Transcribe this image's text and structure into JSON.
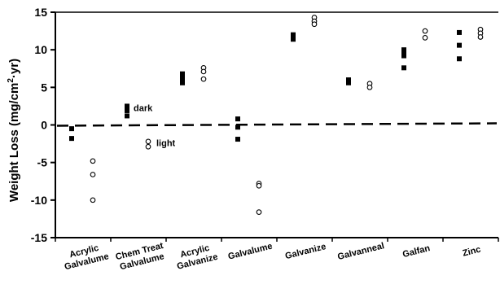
{
  "chart_data": {
    "type": "scatter",
    "title": "",
    "xlabel": "",
    "ylabel": "Weight Loss (mg/cm²·yr)",
    "ylabel_main": "Weight Loss (mg/cm",
    "ylabel_sup": "2",
    "ylabel_tail": "·yr)",
    "ylim": [
      -15,
      15
    ],
    "yticks": [
      15,
      10,
      5,
      0,
      -5,
      -10,
      -15
    ],
    "grid": false,
    "legend": "none",
    "reference_line": {
      "y": 0,
      "style": "dashed"
    },
    "categories": [
      {
        "line1": "Acrylic",
        "line2": "Galvalume"
      },
      {
        "line1": "Chem Treat",
        "line2": "Galvalume"
      },
      {
        "line1": "Acrylic",
        "line2": "Galvanize"
      },
      {
        "line1": "Galvalume",
        "line2": ""
      },
      {
        "line1": "Galvanize",
        "line2": ""
      },
      {
        "line1": "Galvanneal",
        "line2": ""
      },
      {
        "line1": "Galfan",
        "line2": ""
      },
      {
        "line1": "Zinc",
        "line2": ""
      }
    ],
    "series": [
      {
        "name": "dark",
        "marker": "filled-square",
        "points": [
          [
            0,
            -0.5
          ],
          [
            0,
            -1.8
          ],
          [
            1,
            2.5
          ],
          [
            1,
            1.9
          ],
          [
            1,
            1.2
          ],
          [
            2,
            6.8
          ],
          [
            2,
            6.4
          ],
          [
            2,
            6.0
          ],
          [
            2,
            5.6
          ],
          [
            3,
            0.8
          ],
          [
            3,
            -0.3
          ],
          [
            3,
            -1.9
          ],
          [
            4,
            12.0
          ],
          [
            4,
            11.4
          ],
          [
            5,
            6.0
          ],
          [
            5,
            5.6
          ],
          [
            6,
            10.0
          ],
          [
            6,
            9.6
          ],
          [
            6,
            9.2
          ],
          [
            6,
            7.6
          ],
          [
            7,
            12.3
          ],
          [
            7,
            10.6
          ],
          [
            7,
            8.8
          ]
        ]
      },
      {
        "name": "light",
        "marker": "open-circle",
        "points": [
          [
            0,
            -4.8
          ],
          [
            0,
            -6.6
          ],
          [
            0,
            -10.0
          ],
          [
            1,
            -2.2
          ],
          [
            1,
            -2.9
          ],
          [
            2,
            7.6
          ],
          [
            2,
            7.1
          ],
          [
            2,
            6.1
          ],
          [
            3,
            -7.8
          ],
          [
            3,
            -8.1
          ],
          [
            3,
            -11.6
          ],
          [
            4,
            14.3
          ],
          [
            4,
            13.8
          ],
          [
            4,
            13.4
          ],
          [
            5,
            5.5
          ],
          [
            5,
            5.0
          ],
          [
            6,
            12.5
          ],
          [
            6,
            11.6
          ],
          [
            7,
            12.7
          ],
          [
            7,
            12.2
          ],
          [
            7,
            11.7
          ]
        ]
      }
    ],
    "annotations": [
      {
        "text": "dark",
        "category": 1,
        "y": 2.3
      },
      {
        "text": "light",
        "category": 1,
        "y": -2.4
      }
    ]
  }
}
